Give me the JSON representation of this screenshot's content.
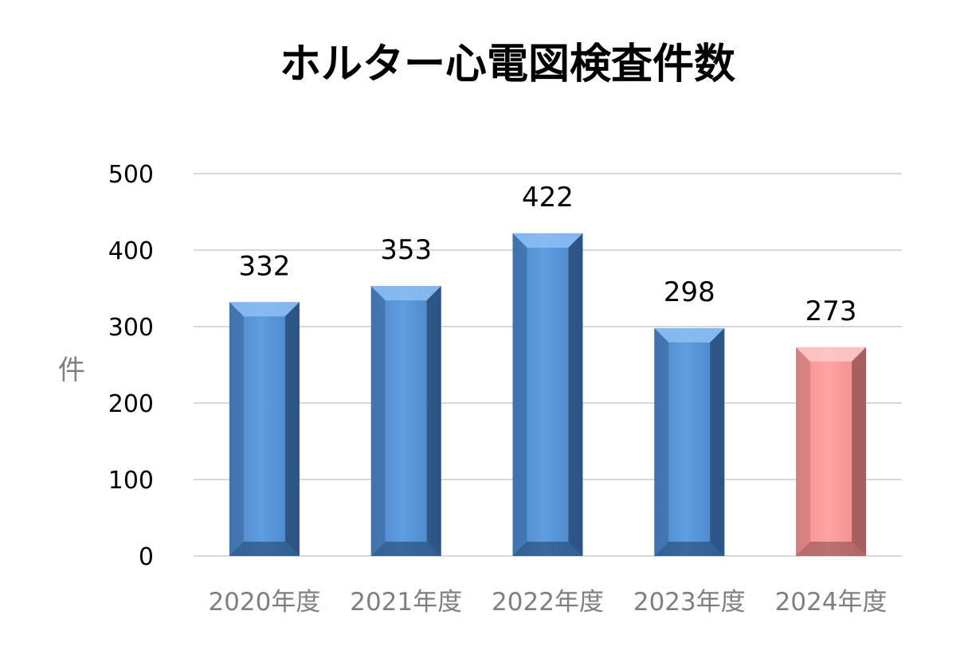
{
  "chart_data": {
    "type": "bar",
    "title": "ホルター心電図検査件数",
    "xlabel": "",
    "ylabel": "件",
    "categories": [
      "2020年度",
      "2021年度",
      "2022年度",
      "2023年度",
      "2024年度"
    ],
    "values": [
      332,
      353,
      422,
      298,
      273
    ],
    "data_labels": [
      "332",
      "353",
      "422",
      "298",
      "273"
    ],
    "ylim": [
      0,
      500
    ],
    "yticks": [
      0,
      100,
      200,
      300,
      400,
      500
    ],
    "grid": true,
    "legend": "none",
    "colors": {
      "default_bar": "#5b9bd5",
      "highlight_bar": "#ff9e9e",
      "highlight_category": "2024年度",
      "gridline": "#d9d9d9"
    }
  }
}
